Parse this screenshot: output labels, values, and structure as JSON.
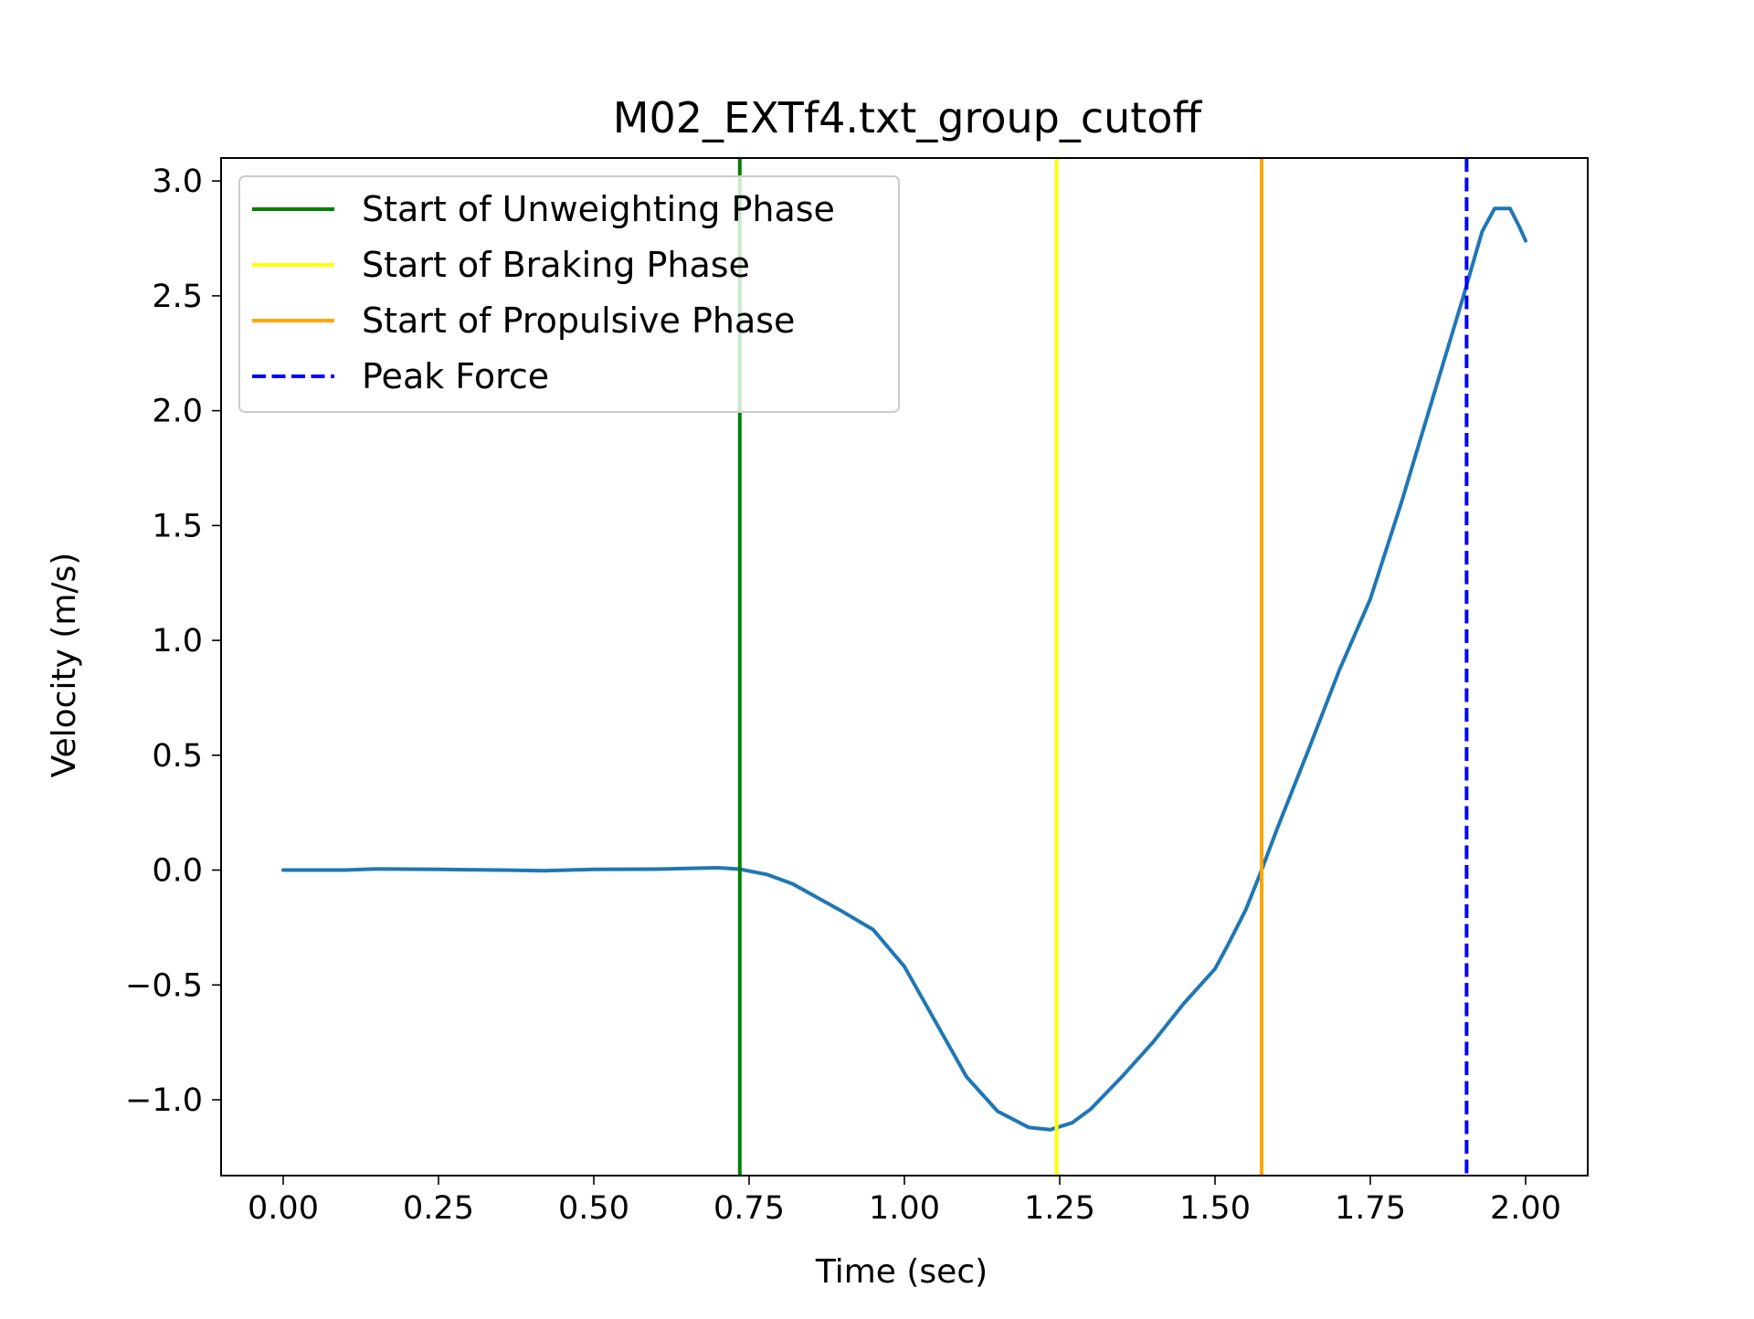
{
  "chart_data": {
    "type": "line",
    "title": "M02_EXTf4.txt_group_cutoff",
    "xlabel": "Time (sec)",
    "ylabel": "Velocity (m/s)",
    "xlim": [
      -0.1,
      2.1
    ],
    "ylim": [
      -1.33,
      3.1
    ],
    "x_ticks": [
      0.0,
      0.25,
      0.5,
      0.75,
      1.0,
      1.25,
      1.5,
      1.75,
      2.0
    ],
    "x_tick_labels": [
      "0.00",
      "0.25",
      "0.50",
      "0.75",
      "1.00",
      "1.25",
      "1.50",
      "1.75",
      "2.00"
    ],
    "y_ticks": [
      -1.0,
      -0.5,
      0.0,
      0.5,
      1.0,
      1.5,
      2.0,
      2.5,
      3.0
    ],
    "y_tick_labels": [
      "−1.0",
      "−0.5",
      "0.0",
      "0.5",
      "1.0",
      "1.5",
      "2.0",
      "2.5",
      "3.0"
    ],
    "grid": false,
    "legend_position": "upper-left",
    "series": [
      {
        "color": "#1f77b4",
        "x": [
          0.0,
          0.1,
          0.15,
          0.25,
          0.35,
          0.42,
          0.5,
          0.6,
          0.7,
          0.735,
          0.78,
          0.82,
          0.86,
          0.9,
          0.95,
          1.0,
          1.05,
          1.1,
          1.15,
          1.2,
          1.235,
          1.27,
          1.3,
          1.35,
          1.4,
          1.45,
          1.5,
          1.52,
          1.55,
          1.575,
          1.6,
          1.65,
          1.7,
          1.75,
          1.8,
          1.85,
          1.9,
          1.93,
          1.95,
          1.975,
          1.99,
          2.0
        ],
        "y": [
          0.0,
          0.0,
          0.005,
          0.003,
          0.0,
          -0.003,
          0.003,
          0.004,
          0.01,
          0.004,
          -0.02,
          -0.06,
          -0.12,
          -0.18,
          -0.26,
          -0.42,
          -0.66,
          -0.9,
          -1.05,
          -1.12,
          -1.13,
          -1.1,
          -1.04,
          -0.9,
          -0.75,
          -0.58,
          -0.43,
          -0.33,
          -0.17,
          0.0,
          0.18,
          0.52,
          0.87,
          1.18,
          1.6,
          2.05,
          2.5,
          2.78,
          2.88,
          2.88,
          2.8,
          2.74
        ]
      }
    ],
    "vertical_lines": [
      {
        "x": 0.735,
        "color": "#008000",
        "style": "solid",
        "label": "Start of Unweighting Phase"
      },
      {
        "x": 1.245,
        "color": "#ffff00",
        "style": "solid",
        "label": "Start of Braking Phase"
      },
      {
        "x": 1.575,
        "color": "#ffa500",
        "style": "solid",
        "label": "Start of Propulsive Phase"
      },
      {
        "x": 1.905,
        "color": "#0000ff",
        "style": "dashed",
        "label": "Peak Force"
      }
    ]
  }
}
